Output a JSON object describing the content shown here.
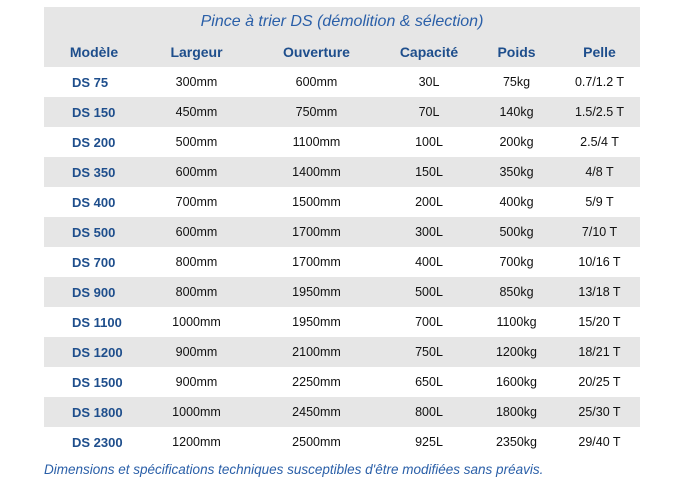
{
  "title": "Pince à trier DS (démolition & sélection)",
  "columns": [
    "Modèle",
    "Largeur",
    "Ouverture",
    "Capacité",
    "Poids",
    "Pelle"
  ],
  "rows": [
    [
      "DS 75",
      "300mm",
      "600mm",
      "30L",
      "75kg",
      "0.7/1.2 T"
    ],
    [
      "DS 150",
      "450mm",
      "750mm",
      "70L",
      "140kg",
      "1.5/2.5 T"
    ],
    [
      "DS 200",
      "500mm",
      "1100mm",
      "100L",
      "200kg",
      "2.5/4 T"
    ],
    [
      "DS 350",
      "600mm",
      "1400mm",
      "150L",
      "350kg",
      "4/8 T"
    ],
    [
      "DS 400",
      "700mm",
      "1500mm",
      "200L",
      "400kg",
      "5/9 T"
    ],
    [
      "DS 500",
      "600mm",
      "1700mm",
      "300L",
      "500kg",
      "7/10 T"
    ],
    [
      "DS 700",
      "800mm",
      "1700mm",
      "400L",
      "700kg",
      "10/16 T"
    ],
    [
      "DS 900",
      "800mm",
      "1950mm",
      "500L",
      "850kg",
      "13/18 T"
    ],
    [
      "DS 1100",
      "1000mm",
      "1950mm",
      "700L",
      "1100kg",
      "15/20 T"
    ],
    [
      "DS 1200",
      "900mm",
      "2100mm",
      "750L",
      "1200kg",
      "18/21 T"
    ],
    [
      "DS 1500",
      "900mm",
      "2250mm",
      "650L",
      "1600kg",
      "20/25 T"
    ],
    [
      "DS 1800",
      "1000mm",
      "2450mm",
      "800L",
      "1800kg",
      "25/30 T"
    ],
    [
      "DS 2300",
      "1200mm",
      "2500mm",
      "925L",
      "2350kg",
      "29/40 T"
    ]
  ],
  "footnote": "Dimensions et spécifications techniques susceptibles d'être modifiées sans préavis."
}
